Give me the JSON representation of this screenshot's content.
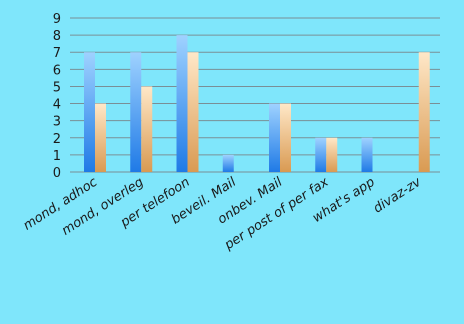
{
  "chart_data": {
    "type": "bar",
    "categories": [
      "mond, adhoc",
      "mond, overleg",
      "per telefoon",
      "beveil. Mail",
      "onbev. Mail",
      "per post of per fax",
      "what's app",
      "divaz-zv"
    ],
    "series": [
      {
        "values": [
          7,
          7,
          8,
          1,
          4,
          2,
          2,
          0
        ]
      },
      {
        "values": [
          4,
          5,
          7,
          0,
          4,
          2,
          0,
          7
        ]
      }
    ],
    "ylim": [
      0,
      9
    ],
    "yticks": [
      0,
      1,
      2,
      3,
      4,
      5,
      6,
      7,
      8,
      9
    ],
    "grid": true,
    "colors": {
      "background": "#7fe6fb",
      "series1_top": "#9fd2ff",
      "series1_bottom": "#1f7ae6",
      "series2_top": "#ffe8c8",
      "series2_bottom": "#d99a52",
      "grid": "#7a8f96"
    }
  }
}
